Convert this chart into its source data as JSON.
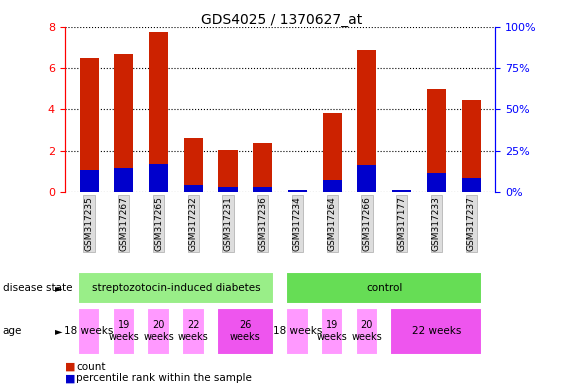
{
  "title": "GDS4025 / 1370627_at",
  "samples": [
    "GSM317235",
    "GSM317267",
    "GSM317265",
    "GSM317232",
    "GSM317231",
    "GSM317236",
    "GSM317234",
    "GSM317264",
    "GSM317266",
    "GSM317177",
    "GSM317233",
    "GSM317237"
  ],
  "count_values": [
    6.5,
    6.7,
    7.75,
    2.6,
    2.05,
    2.35,
    0.12,
    3.85,
    6.9,
    0.12,
    5.0,
    4.45
  ],
  "percentile_values": [
    1.05,
    1.15,
    1.35,
    0.35,
    0.25,
    0.25,
    0.12,
    0.6,
    1.3,
    0.12,
    0.9,
    0.7
  ],
  "red_color": "#CC2200",
  "blue_color": "#0000CC",
  "bar_width": 0.55,
  "ylim": [
    0,
    8
  ],
  "yticks": [
    0,
    2,
    4,
    6,
    8
  ],
  "bg_color": "#FFFFFF",
  "legend_count_label": "count",
  "legend_pct_label": "percentile rank within the sample",
  "disease_groups": [
    {
      "label": "streptozotocin-induced diabetes",
      "start": 0,
      "end": 5,
      "color": "#99EE88"
    },
    {
      "label": "control",
      "start": 6,
      "end": 11,
      "color": "#66DD55"
    }
  ],
  "age_groups": [
    {
      "start": 0,
      "end": 0,
      "label": "18 weeks",
      "color": "#FF99FF"
    },
    {
      "start": 1,
      "end": 1,
      "label": "19\nweeks",
      "color": "#FF99FF"
    },
    {
      "start": 2,
      "end": 2,
      "label": "20\nweeks",
      "color": "#FF99FF"
    },
    {
      "start": 3,
      "end": 3,
      "label": "22\nweeks",
      "color": "#FF99FF"
    },
    {
      "start": 4,
      "end": 5,
      "label": "26\nweeks",
      "color": "#EE55EE"
    },
    {
      "start": 6,
      "end": 6,
      "label": "18 weeks",
      "color": "#FF99FF"
    },
    {
      "start": 7,
      "end": 7,
      "label": "19\nweeks",
      "color": "#FF99FF"
    },
    {
      "start": 8,
      "end": 8,
      "label": "20\nweeks",
      "color": "#FF99FF"
    },
    {
      "start": 9,
      "end": 11,
      "label": "22 weeks",
      "color": "#EE55EE"
    }
  ]
}
